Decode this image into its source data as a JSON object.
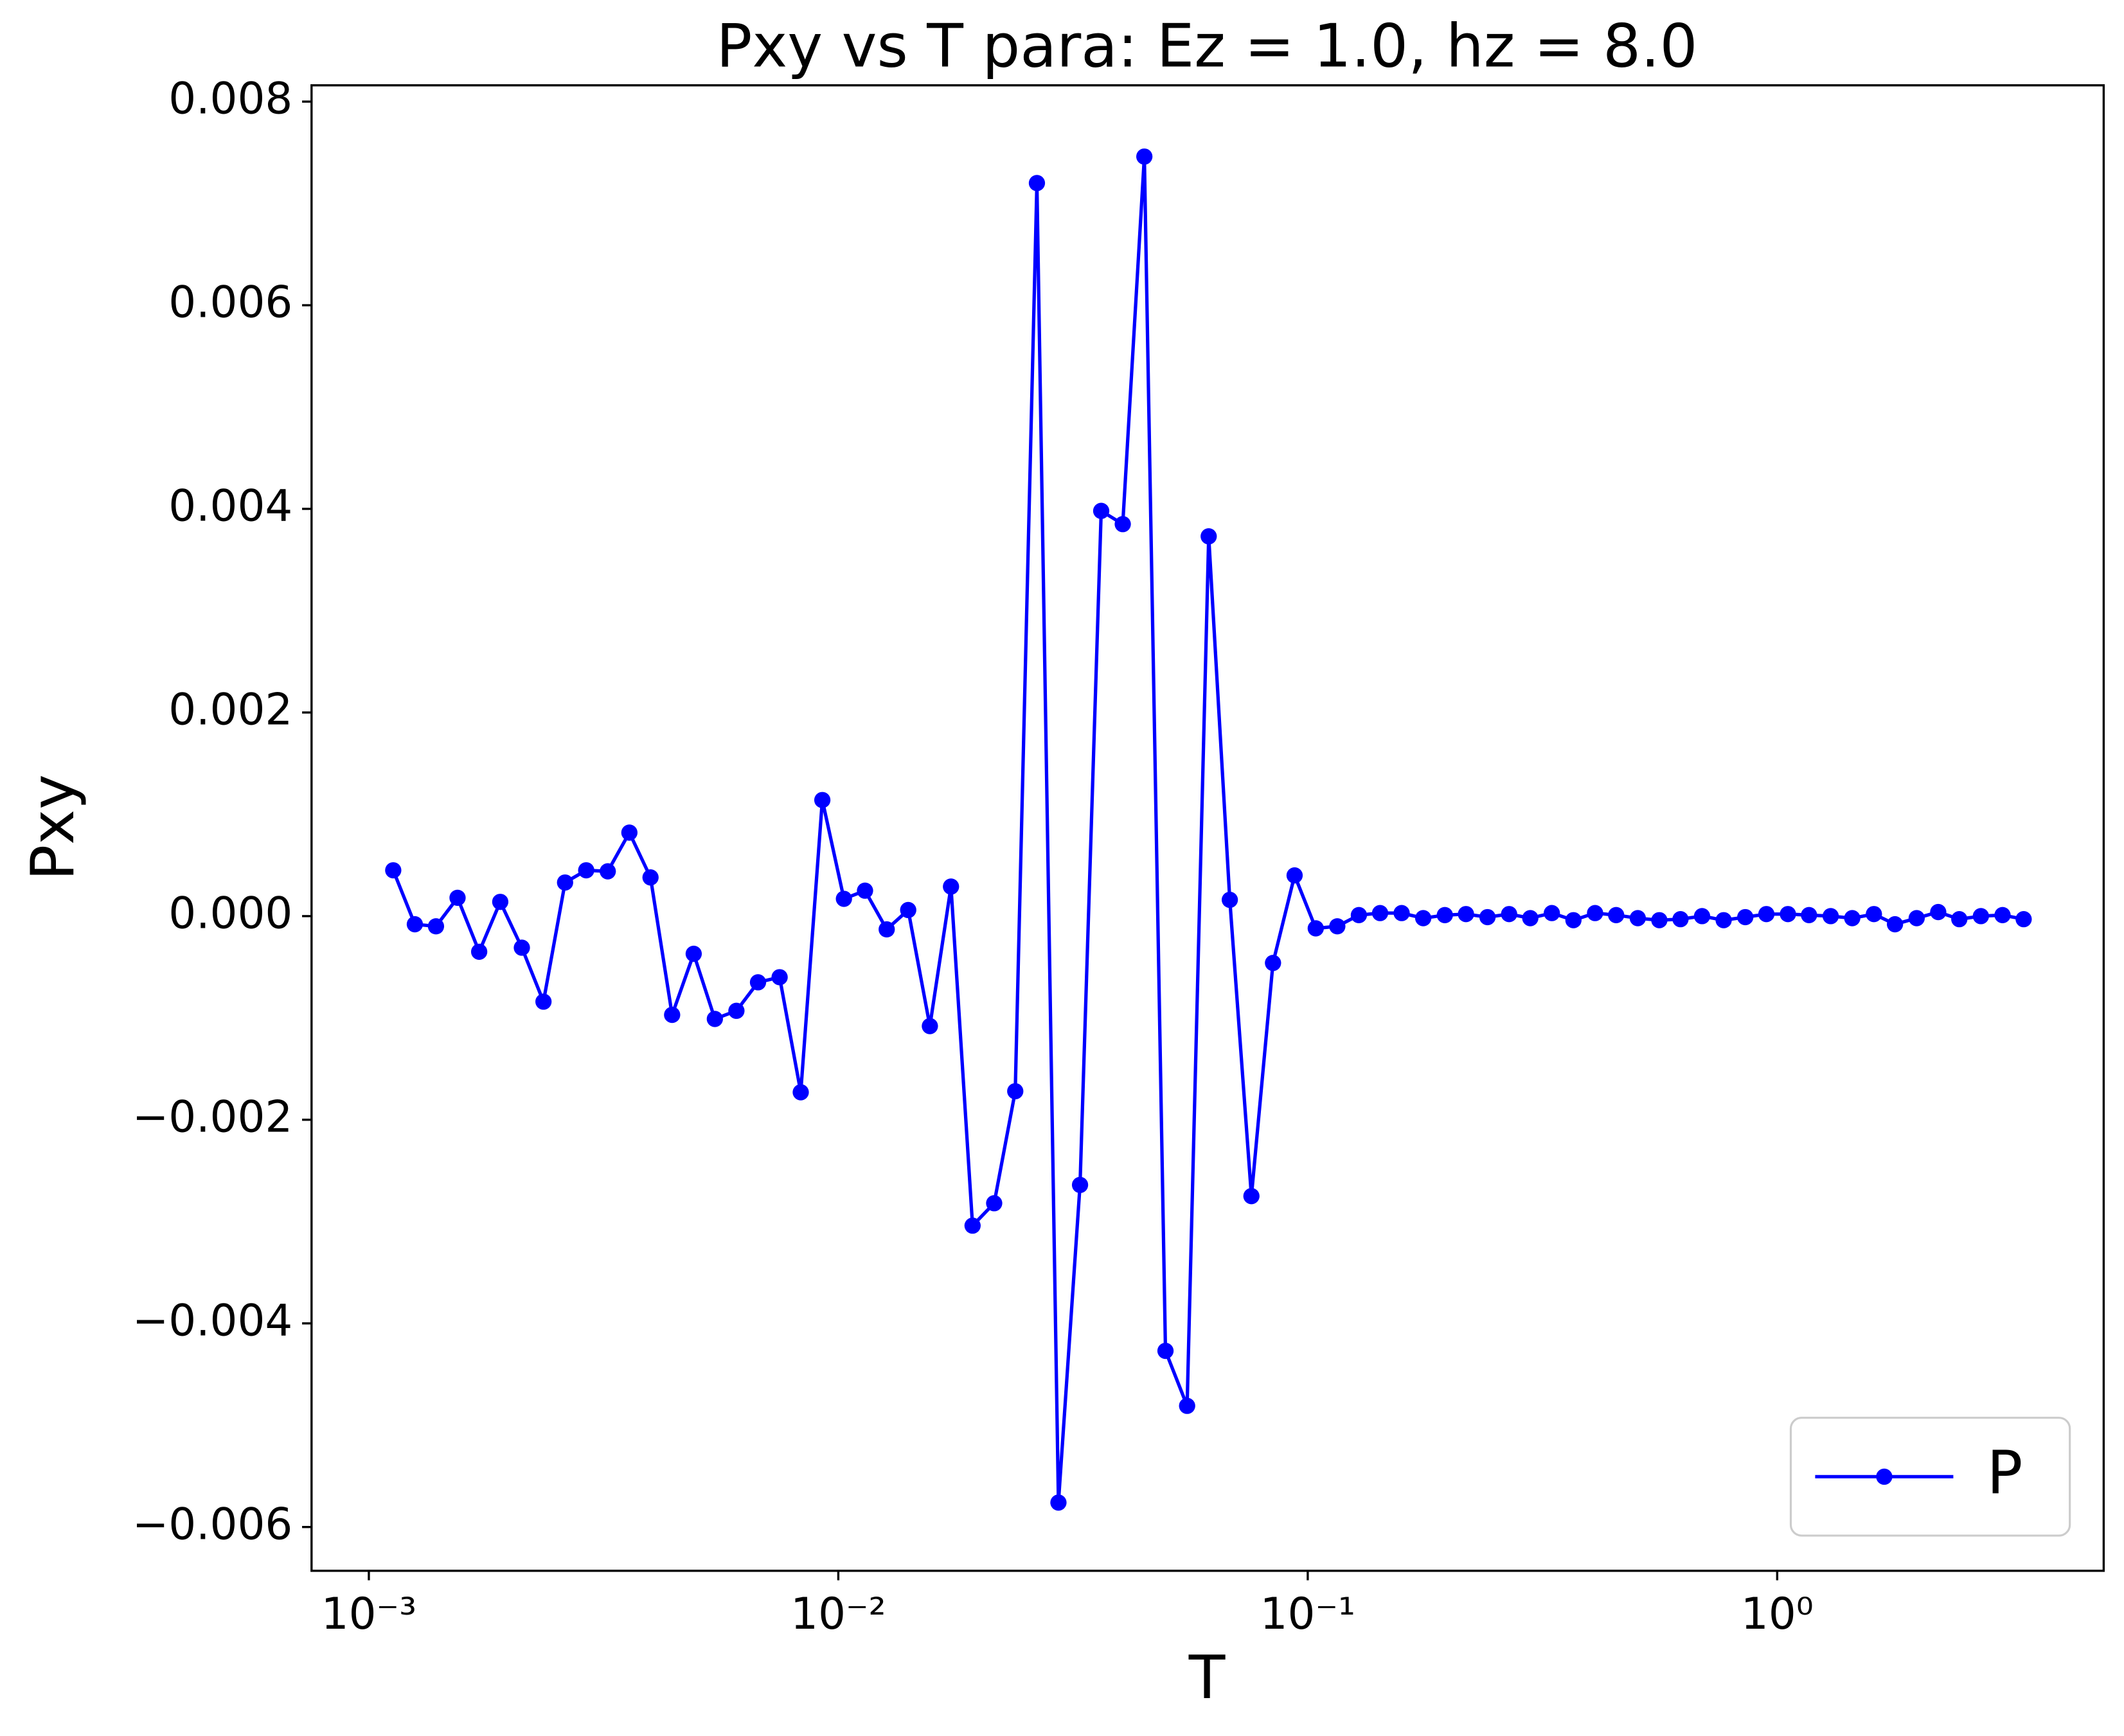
{
  "chart_data": {
    "type": "line",
    "title": "Pxy vs T para: Ez = 1.0, hz = 8.0",
    "x_label": "T",
    "y_label": "Pxy",
    "x_scale": "log",
    "grid": false,
    "legend_position": "lower right",
    "x": [
      0.001127,
      0.001253,
      0.00139,
      0.001545,
      0.001718,
      0.001905,
      0.002118,
      0.002355,
      0.002618,
      0.002904,
      0.003228,
      0.003589,
      0.003981,
      0.004426,
      0.00492,
      0.005458,
      0.006067,
      0.006745,
      0.007499,
      0.008318,
      0.009247,
      0.01028,
      0.0114,
      0.01268,
      0.01409,
      0.01567,
      0.01738,
      0.01932,
      0.02148,
      0.02382,
      0.02649,
      0.02944,
      0.03273,
      0.03631,
      0.04036,
      0.04487,
      0.04977,
      0.05534,
      0.06152,
      0.06823,
      0.07586,
      0.08433,
      0.09376,
      0.104,
      0.1156,
      0.1285,
      0.1426,
      0.1585,
      0.1762,
      0.1959,
      0.2173,
      0.2415,
      0.2685,
      0.2979,
      0.3311,
      0.3681,
      0.4093,
      0.4539,
      0.5047,
      0.561,
      0.6223,
      0.6918,
      0.7691,
      0.8551,
      0.9484,
      1.054,
      1.169,
      1.3,
      1.445,
      1.607,
      1.782,
      1.982,
      2.203,
      2.443,
      2.716,
      3.02,
      3.35
    ],
    "series": [
      {
        "name": "P",
        "color": "#0000ff",
        "values": [
          0.00045,
          -8e-05,
          -0.0001,
          0.00018,
          -0.00035,
          0.00014,
          -0.00031,
          -0.00084,
          0.00033,
          0.00045,
          0.00044,
          0.00082,
          0.00038,
          -0.00097,
          -0.00037,
          -0.00101,
          -0.00093,
          -0.00065,
          -0.0006,
          -0.00173,
          0.00114,
          0.00017,
          0.00025,
          -0.00013,
          6e-05,
          -0.00108,
          0.00029,
          -0.00304,
          -0.00282,
          -0.00172,
          0.0072,
          -0.00576,
          -0.00264,
          0.00398,
          0.00385,
          0.00746,
          -0.00427,
          -0.00481,
          0.00373,
          0.00016,
          -0.00275,
          -0.00046,
          0.0004,
          -0.00012,
          -0.0001,
          1e-05,
          3e-05,
          3e-05,
          -2e-05,
          1e-05,
          2e-05,
          -1e-05,
          2e-05,
          -2e-05,
          3e-05,
          -4e-05,
          3e-05,
          1e-05,
          -2e-05,
          -4e-05,
          -3e-05,
          0,
          -4e-05,
          -1e-05,
          2e-05,
          2e-05,
          1e-05,
          0,
          -2e-05,
          2e-05,
          -8e-05,
          -2e-05,
          4e-05,
          -3e-05,
          0,
          1e-05,
          -3e-05
        ]
      }
    ],
    "xlim": [
      0.000755,
      4.96
    ],
    "xticks": [
      {
        "value": 0.001,
        "label": "10⁻³"
      },
      {
        "value": 0.01,
        "label": "10⁻²"
      },
      {
        "value": 0.1,
        "label": "10⁻¹"
      },
      {
        "value": 1,
        "label": "10⁰"
      }
    ],
    "ylim": [
      -0.00643,
      0.00816
    ],
    "yticks": [
      {
        "value": -0.006,
        "label": "−0.006"
      },
      {
        "value": -0.004,
        "label": "−0.004"
      },
      {
        "value": -0.002,
        "label": "−0.002"
      },
      {
        "value": 0,
        "label": "0.000"
      },
      0.002,
      0.004,
      0.006,
      0.008
    ]
  }
}
